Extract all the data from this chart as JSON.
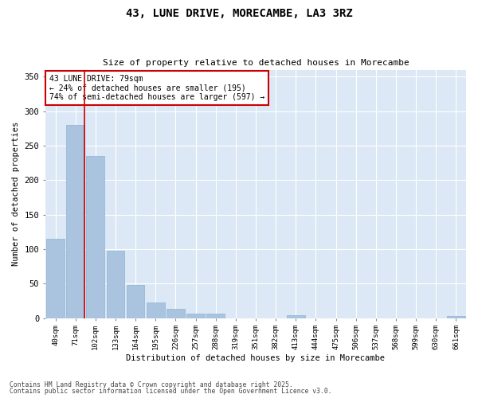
{
  "title": "43, LUNE DRIVE, MORECAMBE, LA3 3RZ",
  "subtitle": "Size of property relative to detached houses in Morecambe",
  "xlabel": "Distribution of detached houses by size in Morecambe",
  "ylabel": "Number of detached properties",
  "categories": [
    "40sqm",
    "71sqm",
    "102sqm",
    "133sqm",
    "164sqm",
    "195sqm",
    "226sqm",
    "257sqm",
    "288sqm",
    "319sqm",
    "351sqm",
    "382sqm",
    "413sqm",
    "444sqm",
    "475sqm",
    "506sqm",
    "537sqm",
    "568sqm",
    "599sqm",
    "630sqm",
    "661sqm"
  ],
  "values": [
    115,
    280,
    235,
    98,
    48,
    22,
    13,
    6,
    6,
    0,
    0,
    0,
    4,
    0,
    0,
    0,
    0,
    0,
    0,
    0,
    3
  ],
  "bar_color": "#aac4e0",
  "bar_edge_color": "#8ab4d4",
  "vline_x_index": 1,
  "vline_color": "#cc0000",
  "annotation_text": "43 LUNE DRIVE: 79sqm\n← 24% of detached houses are smaller (195)\n74% of semi-detached houses are larger (597) →",
  "annotation_box_color": "#ffffff",
  "annotation_box_edge_color": "#cc0000",
  "ylim": [
    0,
    360
  ],
  "yticks": [
    0,
    50,
    100,
    150,
    200,
    250,
    300,
    350
  ],
  "bg_color": "#dce8f5",
  "grid_color": "#ffffff",
  "fig_bg_color": "#ffffff",
  "footer_line1": "Contains HM Land Registry data © Crown copyright and database right 2025.",
  "footer_line2": "Contains public sector information licensed under the Open Government Licence v3.0."
}
